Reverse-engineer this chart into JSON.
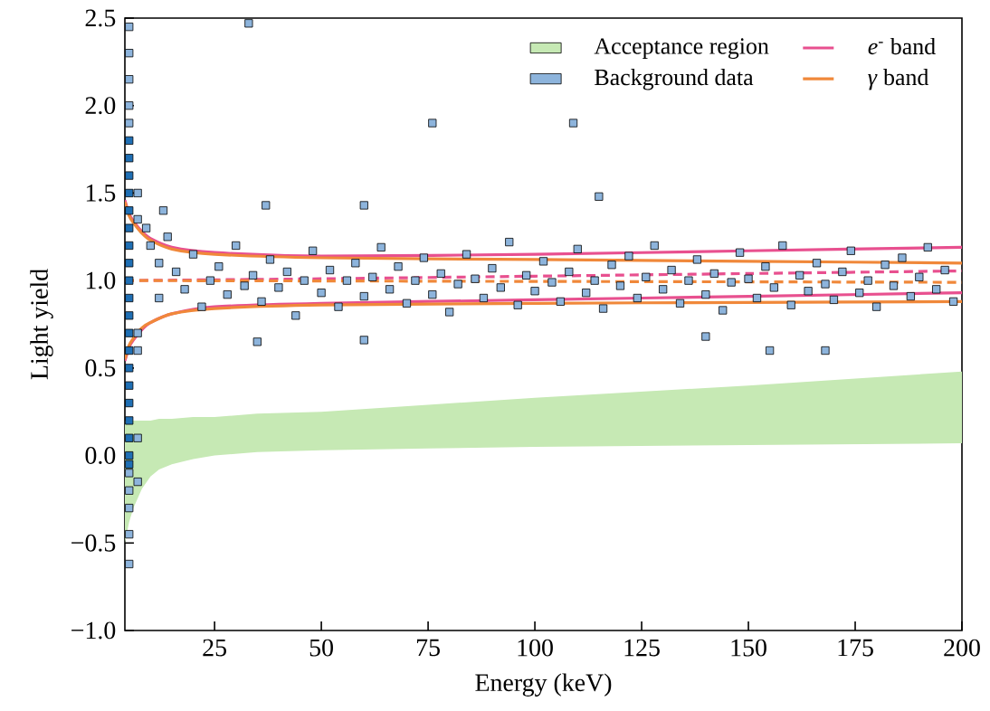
{
  "chart_data": {
    "type": "line",
    "xlabel": "Energy (keV)",
    "ylabel": "Light yield",
    "xlim": [
      4,
      200
    ],
    "ylim": [
      -1.0,
      2.5
    ],
    "xticks": [
      25,
      50,
      75,
      100,
      125,
      150,
      175,
      200
    ],
    "yticks": [
      {
        "value": -1.0,
        "label": "−1.0"
      },
      {
        "value": -0.5,
        "label": "−0.5"
      },
      {
        "value": 0.0,
        "label": "0.0"
      },
      {
        "value": 0.5,
        "label": "0.5"
      },
      {
        "value": 1.0,
        "label": "1.0"
      },
      {
        "value": 1.5,
        "label": "1.5"
      },
      {
        "value": 2.0,
        "label": "2.0"
      },
      {
        "value": 2.5,
        "label": "2.5"
      }
    ],
    "legend": "top right",
    "grid": false,
    "series": [
      {
        "type": "area",
        "name": "Acceptance region",
        "color": "#c6e9b4",
        "x": [
          4,
          5,
          6,
          8,
          10,
          12,
          15,
          20,
          25,
          35,
          50,
          75,
          100,
          150,
          200
        ],
        "values": [
          null,
          null,
          null,
          null,
          null,
          null,
          null,
          null,
          null,
          null,
          null,
          null,
          null,
          null,
          null
        ],
        "upper": [
          0.2,
          0.2,
          0.2,
          0.2,
          0.2,
          0.21,
          0.21,
          0.22,
          0.22,
          0.24,
          0.25,
          0.29,
          0.33,
          0.4,
          0.48
        ],
        "lower": [
          -0.5,
          -0.38,
          -0.3,
          -0.19,
          -0.12,
          -0.08,
          -0.05,
          -0.02,
          0.0,
          0.02,
          0.03,
          0.04,
          0.05,
          0.06,
          0.07
        ]
      },
      {
        "type": "scatter",
        "name": "Background data",
        "color": "#8db4dc",
        "marker": "square",
        "x": [
          5,
          5,
          5,
          5,
          5,
          5,
          5,
          5,
          5,
          5,
          7,
          7,
          7,
          7,
          7,
          7,
          9,
          10,
          12,
          12,
          14,
          16,
          18,
          20,
          22,
          24,
          26,
          28,
          30,
          32,
          34,
          36,
          38,
          40,
          42,
          44,
          46,
          48,
          50,
          52,
          54,
          56,
          58,
          60,
          62,
          64,
          66,
          68,
          70,
          72,
          74,
          76,
          78,
          80,
          82,
          84,
          86,
          88,
          90,
          92,
          94,
          96,
          98,
          100,
          102,
          104,
          106,
          108,
          110,
          112,
          114,
          116,
          118,
          120,
          122,
          124,
          126,
          128,
          130,
          132,
          134,
          136,
          138,
          140,
          142,
          144,
          146,
          148,
          150,
          152,
          154,
          156,
          158,
          160,
          162,
          164,
          166,
          168,
          170,
          172,
          174,
          176,
          178,
          180,
          182,
          184,
          186,
          188,
          190,
          192,
          194,
          196,
          198,
          33,
          76,
          109,
          115,
          60,
          37,
          13,
          155,
          168,
          35,
          60,
          140
        ],
        "values": [
          2.45,
          2.3,
          2.15,
          2.0,
          1.9,
          -0.1,
          -0.2,
          -0.3,
          -0.45,
          -0.62,
          1.5,
          1.35,
          0.7,
          0.6,
          0.1,
          -0.15,
          1.3,
          1.2,
          1.1,
          0.9,
          1.25,
          1.05,
          0.95,
          1.15,
          0.85,
          1.0,
          1.08,
          0.92,
          1.2,
          0.97,
          1.03,
          0.88,
          1.12,
          0.96,
          1.05,
          0.8,
          1.0,
          1.17,
          0.93,
          1.06,
          0.85,
          1.0,
          1.1,
          0.91,
          1.02,
          1.19,
          0.95,
          1.08,
          0.87,
          1.0,
          1.13,
          0.92,
          1.04,
          0.82,
          0.98,
          1.15,
          1.01,
          0.9,
          1.07,
          0.96,
          1.22,
          0.86,
          1.03,
          0.94,
          1.11,
          0.99,
          0.88,
          1.05,
          1.18,
          0.93,
          1.0,
          0.84,
          1.09,
          0.97,
          1.14,
          0.9,
          1.02,
          1.2,
          0.95,
          1.06,
          0.87,
          1.0,
          1.12,
          0.92,
          1.04,
          0.83,
          0.99,
          1.16,
          1.01,
          0.9,
          1.08,
          0.96,
          1.2,
          0.86,
          1.03,
          0.94,
          1.1,
          0.98,
          0.89,
          1.05,
          1.17,
          0.93,
          1.0,
          0.85,
          1.09,
          0.97,
          1.13,
          0.91,
          1.02,
          1.19,
          0.95,
          1.06,
          0.88,
          2.47,
          1.9,
          1.9,
          1.48,
          1.43,
          1.43,
          1.4,
          0.6,
          0.6,
          0.65,
          0.66,
          0.68
        ]
      },
      {
        "type": "scatter",
        "color": "#1f6fb4",
        "marker": "square",
        "x": [
          5,
          5,
          5,
          5,
          5,
          5,
          5,
          5,
          5,
          5,
          5,
          5,
          5,
          5,
          5,
          5,
          5,
          5,
          5,
          5
        ],
        "values": [
          1.8,
          1.7,
          1.6,
          1.5,
          1.4,
          1.3,
          1.2,
          1.1,
          1.0,
          0.9,
          0.8,
          0.7,
          0.6,
          0.5,
          0.4,
          0.3,
          0.2,
          0.1,
          0.0,
          -0.05
        ]
      },
      {
        "name": "*e*$^{-}$ band",
        "color": "#e8508f",
        "line_style": "solid",
        "x": [
          4,
          5,
          6,
          8,
          10,
          15,
          25,
          50,
          100,
          150,
          200
        ],
        "values": [
          1.46,
          1.38,
          1.34,
          1.28,
          1.24,
          1.19,
          1.16,
          1.14,
          1.15,
          1.17,
          1.19
        ]
      },
      {
        "color": "#e8508f",
        "line_style": "dashed",
        "x": [
          4,
          50,
          100,
          150,
          200
        ],
        "values": [
          1.0,
          1.01,
          1.025,
          1.04,
          1.055
        ]
      },
      {
        "color": "#e8508f",
        "line_style": "solid",
        "x": [
          4,
          5,
          6,
          8,
          10,
          15,
          25,
          50,
          100,
          150,
          200
        ],
        "values": [
          0.54,
          0.62,
          0.66,
          0.72,
          0.76,
          0.81,
          0.85,
          0.87,
          0.89,
          0.91,
          0.93
        ]
      },
      {
        "name": "*γ* band",
        "color": "#f0883a",
        "line_style": "solid",
        "x": [
          4,
          5,
          6,
          8,
          10,
          15,
          25,
          50,
          100,
          150,
          200
        ],
        "values": [
          1.45,
          1.37,
          1.33,
          1.27,
          1.23,
          1.18,
          1.15,
          1.13,
          1.12,
          1.11,
          1.1
        ]
      },
      {
        "color": "#f0883a",
        "line_style": "dashed",
        "x": [
          4,
          200
        ],
        "values": [
          1.0,
          0.99
        ]
      },
      {
        "color": "#f0883a",
        "line_style": "solid",
        "x": [
          4,
          5,
          6,
          8,
          10,
          15,
          25,
          50,
          100,
          150,
          200
        ],
        "values": [
          0.55,
          0.63,
          0.67,
          0.73,
          0.76,
          0.81,
          0.84,
          0.86,
          0.87,
          0.875,
          0.88
        ]
      }
    ]
  }
}
